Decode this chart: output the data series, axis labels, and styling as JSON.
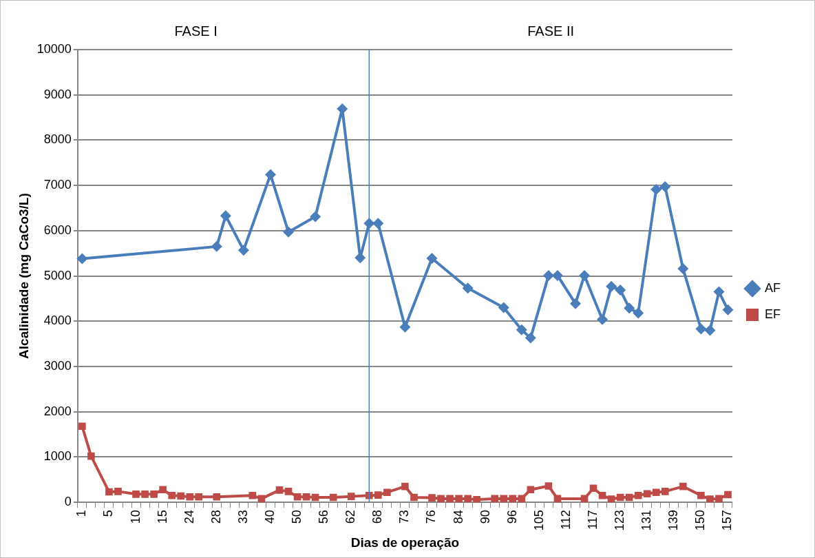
{
  "chart_data": {
    "type": "line",
    "xlabel": "Dias de operação",
    "ylabel": "Alcalinidade (mg CaCo3/L)",
    "categories": [
      "1",
      null,
      null,
      "5",
      null,
      null,
      "10",
      null,
      null,
      "15",
      null,
      null,
      "24",
      null,
      null,
      "28",
      null,
      null,
      "33",
      null,
      null,
      "40",
      null,
      null,
      "50",
      null,
      null,
      "56",
      null,
      null,
      "62",
      null,
      null,
      "68",
      null,
      null,
      "73",
      null,
      null,
      "76",
      null,
      null,
      "84",
      null,
      null,
      "90",
      null,
      null,
      "96",
      null,
      null,
      "105",
      null,
      null,
      "112",
      null,
      null,
      "117",
      null,
      null,
      "123",
      null,
      null,
      "131",
      null,
      null,
      "139",
      null,
      null,
      "150",
      null,
      null,
      "157"
    ],
    "series": [
      {
        "name": "AF",
        "color": "#4a7ebb",
        "marker": "diamond",
        "values": [
          5380,
          null,
          null,
          null,
          null,
          null,
          null,
          null,
          null,
          null,
          null,
          null,
          null,
          null,
          null,
          5650,
          6330,
          null,
          5570,
          null,
          null,
          7240,
          null,
          5970,
          null,
          null,
          6310,
          null,
          null,
          8690,
          null,
          5400,
          6160,
          6160,
          null,
          null,
          3870,
          null,
          null,
          5390,
          null,
          null,
          null,
          4730,
          null,
          null,
          null,
          4300,
          null,
          3810,
          3630,
          null,
          5010,
          5010,
          null,
          4390,
          5010,
          null,
          4040,
          4770,
          4690,
          4290,
          4180,
          null,
          6910,
          6970,
          null,
          5160,
          null,
          3830,
          3800,
          4650,
          4250
        ]
      },
      {
        "name": "EF",
        "color": "#be4b48",
        "marker": "square",
        "values": [
          1680,
          1020,
          null,
          230,
          240,
          null,
          180,
          180,
          180,
          280,
          150,
          140,
          120,
          120,
          null,
          120,
          null,
          null,
          null,
          150,
          80,
          null,
          270,
          240,
          120,
          120,
          110,
          null,
          110,
          null,
          130,
          null,
          150,
          160,
          220,
          null,
          350,
          110,
          null,
          100,
          80,
          80,
          80,
          80,
          60,
          null,
          80,
          80,
          80,
          80,
          280,
          null,
          360,
          80,
          null,
          null,
          80,
          310,
          150,
          70,
          110,
          110,
          150,
          190,
          220,
          240,
          null,
          350,
          null,
          150,
          70,
          80,
          170
        ]
      }
    ],
    "ylim": [
      0,
      10000
    ],
    "yticks": [
      0,
      1000,
      2000,
      3000,
      4000,
      5000,
      6000,
      7000,
      8000,
      9000,
      10000
    ],
    "grid": "y",
    "legend": "right",
    "line_style": "solid",
    "annotations": [
      "FASE I",
      "FASE II"
    ]
  }
}
